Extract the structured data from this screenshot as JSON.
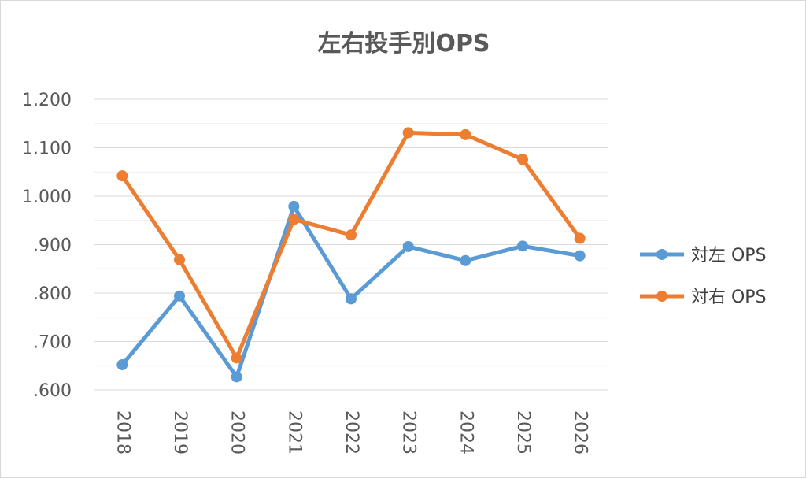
{
  "chart_data": {
    "type": "line",
    "title": "左右投手別OPS",
    "categories": [
      "2018",
      "2019",
      "2020",
      "2021",
      "2022",
      "2023",
      "2024",
      "2025",
      "2026"
    ],
    "y_ticks": [
      ".600",
      ".700",
      ".800",
      ".900",
      "1.000",
      "1.100",
      "1.200"
    ],
    "ylim": [
      0.6,
      1.2
    ],
    "series": [
      {
        "name": "対左 OPS",
        "color": "#5b9bd5",
        "values": [
          0.652,
          0.794,
          0.627,
          0.979,
          0.788,
          0.896,
          0.867,
          0.897,
          0.877
        ]
      },
      {
        "name": "対右 OPS",
        "color": "#ed7d31",
        "values": [
          1.042,
          0.869,
          0.666,
          0.952,
          0.92,
          1.131,
          1.127,
          1.076,
          0.913
        ]
      }
    ],
    "grid": true,
    "legend_position": "right",
    "xlabel": "",
    "ylabel": ""
  }
}
